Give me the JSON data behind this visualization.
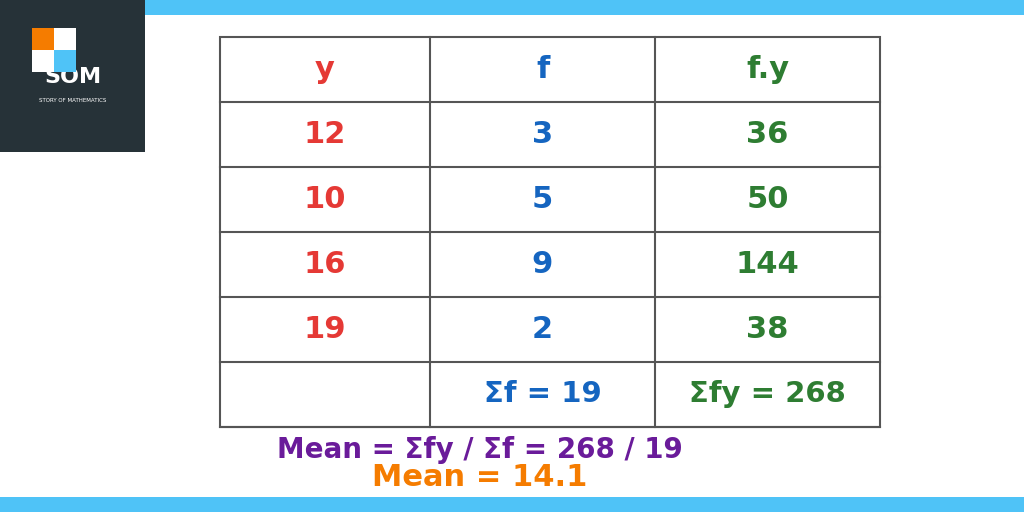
{
  "bg_color": "#ffffff",
  "border_color": "#4fc3f7",
  "header_row": [
    "y",
    "f",
    "f.y"
  ],
  "header_colors": [
    "#e53935",
    "#1565c0",
    "#2e7d32"
  ],
  "data_rows": [
    [
      "12",
      "3",
      "36"
    ],
    [
      "10",
      "5",
      "50"
    ],
    [
      "16",
      "9",
      "144"
    ],
    [
      "19",
      "2",
      "38"
    ]
  ],
  "data_col_colors": [
    "#e53935",
    "#1565c0",
    "#2e7d32"
  ],
  "summary_row": [
    "",
    "Σf = 19",
    "Σfy = 268"
  ],
  "summary_colors": [
    "#e53935",
    "#1565c0",
    "#2e7d32"
  ],
  "formula_text": "Mean = Σfy / Σf = 268 / 19",
  "formula_color": "#6a1b9a",
  "result_text": "Mean = 14.1",
  "result_color": "#f57c00",
  "table_line_color": "#555555",
  "top_bar_color": "#4fc3f7",
  "bottom_bar_color": "#4fc3f7",
  "logo_bg_color": "#263238",
  "font_size_table": 22,
  "font_size_formula": 20,
  "font_size_result": 22
}
